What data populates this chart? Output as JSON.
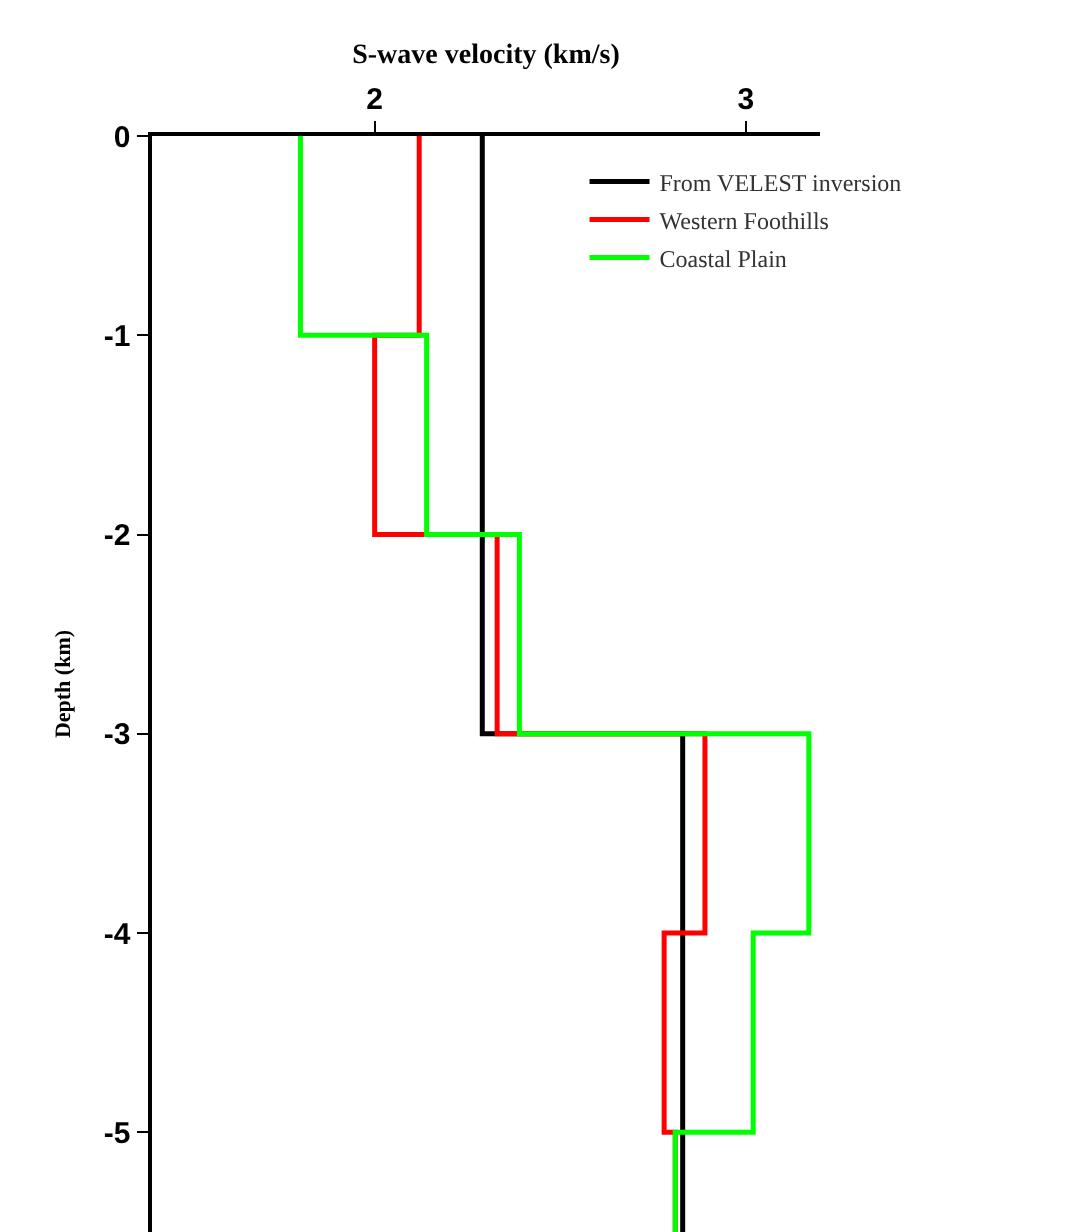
{
  "chart_data": {
    "type": "step",
    "xlabel": "S-wave velocity (km/s)",
    "ylabel": "Depth (km)",
    "xlim": [
      1.4,
      3.2
    ],
    "xticks": [
      2,
      3
    ],
    "ylim": [
      -5.5,
      0
    ],
    "yticks": [
      0,
      -1,
      -2,
      -3,
      -4,
      -5
    ],
    "grid": false,
    "legend": "top right",
    "line_style": "solid",
    "marker": "none",
    "series": [
      {
        "name": "From VELEST inversion",
        "color": "#000000",
        "x": [
          2.29,
          2.29,
          2.29,
          2.83,
          2.83,
          2.83,
          2.83
        ],
        "values": [
          0,
          -1,
          -2,
          -3,
          -4,
          -5,
          -5.5
        ]
      },
      {
        "name": "Western Foothills",
        "color": "#ff0000",
        "x": [
          2.12,
          2.0,
          2.33,
          2.89,
          2.78,
          2.81,
          2.81
        ],
        "values": [
          0,
          -1,
          -2,
          -3,
          -4,
          -5,
          -5.5
        ]
      },
      {
        "name": "Coastal Plain",
        "color": "#00ff00",
        "x": [
          1.8,
          2.14,
          2.39,
          3.17,
          3.02,
          2.81,
          2.81
        ],
        "values": [
          0,
          -1,
          -2,
          -3,
          -4,
          -5,
          -5.5
        ]
      }
    ]
  }
}
